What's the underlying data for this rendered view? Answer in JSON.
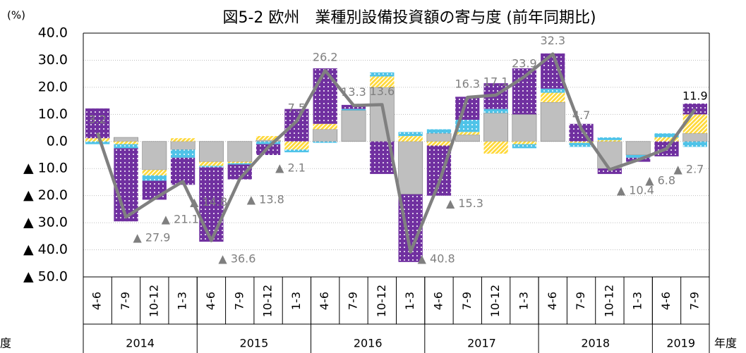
{
  "chart_data": {
    "type": "stacked_bar_line",
    "title": "図5-2 欧州　業種別設備投資額の寄与度 (前年同期比)",
    "y_unit_label": "(%)",
    "x_axis_label": "年度",
    "categories": [
      "4-6",
      "7-9",
      "10-12",
      "1-3",
      "4-6",
      "7-9",
      "10-12",
      "1-3",
      "4-6",
      "7-9",
      "10-12",
      "1-3",
      "4-6",
      "7-9",
      "10-12",
      "1-3",
      "4-6",
      "7-9",
      "10-12",
      "1-3",
      "4-6",
      "7-9"
    ],
    "year_groups": [
      {
        "label": "2014",
        "count": 4
      },
      {
        "label": "2015",
        "count": 4
      },
      {
        "label": "2016",
        "count": 4
      },
      {
        "label": "2017",
        "count": 4
      },
      {
        "label": "2018",
        "count": 4
      },
      {
        "label": "2019",
        "count": 2
      }
    ],
    "series": [
      {
        "color": "#bfbfbf",
        "values": [
          0,
          1.5,
          -10.5,
          -3,
          -7.5,
          -7.5,
          0.5,
          0,
          4.5,
          11.5,
          20,
          -19.5,
          3,
          2.5,
          10.5,
          10,
          14.5,
          0,
          -10,
          -5,
          0,
          3
        ]
      },
      {
        "color": "#ffd93b",
        "values": [
          1.2,
          -1,
          -2,
          1.2,
          -1.5,
          -0.5,
          1.5,
          -3,
          2,
          0,
          4,
          2,
          -1.5,
          1,
          -4.5,
          -1,
          3.5,
          -0.5,
          0.5,
          0,
          1.5,
          7
        ]
      },
      {
        "color": "#4fc3e8",
        "values": [
          -1,
          -1.5,
          -2,
          -3,
          -0.5,
          -0.5,
          -1,
          -1,
          -0.5,
          0.5,
          1.5,
          1.5,
          1.5,
          4.5,
          1.5,
          -1.5,
          1.5,
          -1.5,
          1,
          -1,
          1.5,
          -2
        ]
      },
      {
        "color": "#7030a0",
        "values": [
          11,
          -27,
          -7,
          -10,
          -27.5,
          -5.5,
          -4,
          12,
          20.5,
          1.5,
          -12,
          -25,
          -18.5,
          8.5,
          9.5,
          17,
          13,
          6.5,
          -2,
          -1.5,
          -5.5,
          4
        ]
      }
    ],
    "line": {
      "color": "#808080",
      "values": [
        3.2,
        -27.9,
        -21.1,
        -14.8,
        -36.6,
        -13.8,
        -2.1,
        7.5,
        26.2,
        13.3,
        13.6,
        -40.8,
        -15.3,
        16.3,
        17.1,
        23.9,
        32.3,
        4.7,
        -10.4,
        -6.8,
        -2.7,
        11.9
      ],
      "value_labels": [
        "3.2",
        "▲ 27.9",
        "▲ 21.1",
        "▲ 14.8",
        "▲ 36.6",
        "▲ 13.8",
        "▲ 2.1",
        "7.5",
        "26.2",
        "13.3",
        "13.6",
        "▲ 40.8",
        "▲ 15.3",
        "16.3",
        "17.1",
        "23.9",
        "32.3",
        "4.7",
        "▲ 10.4",
        "▲ 6.8",
        "▲ 2.7",
        "11.9"
      ]
    },
    "ylim": [
      -50,
      40
    ],
    "yticks": [
      {
        "value": 40,
        "label": "40.0"
      },
      {
        "value": 30,
        "label": "30.0"
      },
      {
        "value": 20,
        "label": "20.0"
      },
      {
        "value": 10,
        "label": "10.0"
      },
      {
        "value": 0,
        "label": "0.0"
      },
      {
        "value": -10,
        "label": "▲ 10.0"
      },
      {
        "value": -20,
        "label": "▲ 20.0"
      },
      {
        "value": -30,
        "label": "▲ 30.0"
      },
      {
        "value": -40,
        "label": "▲ 40.0"
      },
      {
        "value": -50,
        "label": "▲ 50.0"
      }
    ],
    "grid": true
  }
}
